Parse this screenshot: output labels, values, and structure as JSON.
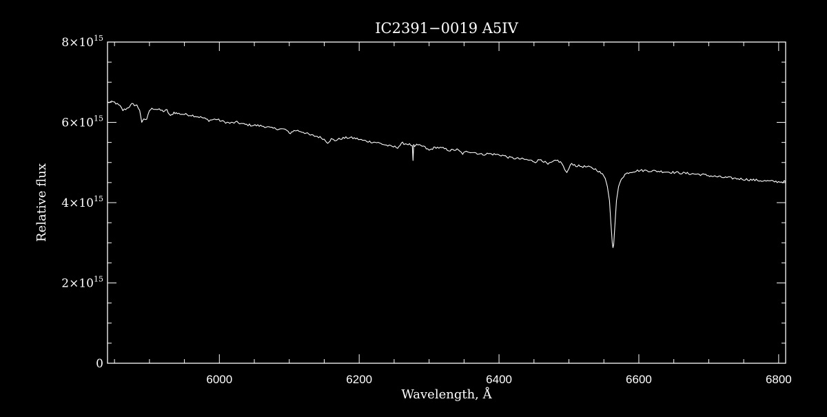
{
  "chart_data": {
    "type": "line",
    "title": "IC2391−0019   A5IV",
    "xlabel": "Wavelength, Å",
    "ylabel": "Relative flux",
    "xlim": [
      5840,
      6810
    ],
    "ylim": [
      0,
      8000000000000000.0
    ],
    "x_ticks": [
      {
        "value": 6000,
        "label": "6000"
      },
      {
        "value": 6200,
        "label": "6200"
      },
      {
        "value": 6400,
        "label": "6400"
      },
      {
        "value": 6600,
        "label": "6600"
      },
      {
        "value": 6800,
        "label": "6800"
      }
    ],
    "y_ticks": [
      {
        "value": 0,
        "mantissa": "0",
        "exponent": ""
      },
      {
        "value": 2000000000000000.0,
        "mantissa": "2×10",
        "exponent": "15"
      },
      {
        "value": 4000000000000000.0,
        "mantissa": "4×10",
        "exponent": "15"
      },
      {
        "value": 6000000000000000.0,
        "mantissa": "6×10",
        "exponent": "15"
      },
      {
        "value": 8000000000000000.0,
        "mantissa": "8×10",
        "exponent": "15"
      }
    ],
    "grid": false,
    "series": [
      {
        "color": "#ffffff",
        "x": [
          5840,
          5850,
          5858,
          5862,
          5868,
          5875,
          5882,
          5886,
          5889,
          5892,
          5896,
          5900,
          5905,
          5912,
          5920,
          5925,
          5930,
          5935,
          5940,
          5950,
          5960,
          5975,
          5985,
          5995,
          6005,
          6015,
          6025,
          6035,
          6045,
          6055,
          6065,
          6075,
          6085,
          6095,
          6100,
          6105,
          6110,
          6120,
          6130,
          6140,
          6148,
          6155,
          6160,
          6165,
          6175,
          6185,
          6195,
          6205,
          6215,
          6225,
          6235,
          6245,
          6255,
          6262,
          6270,
          6276,
          6277,
          6278,
          6279,
          6282,
          6292,
          6300,
          6305,
          6310,
          6320,
          6330,
          6340,
          6348,
          6355,
          6365,
          6375,
          6385,
          6395,
          6405,
          6415,
          6425,
          6435,
          6445,
          6452,
          6460,
          6470,
          6478,
          6484,
          6490,
          6494,
          6497,
          6500,
          6504,
          6510,
          6520,
          6530,
          6540,
          6548,
          6552,
          6555,
          6558,
          6560,
          6562,
          6563,
          6564,
          6566,
          6568,
          6571,
          6575,
          6580,
          6585,
          6592,
          6600,
          6610,
          6620,
          6630,
          6645,
          6660,
          6675,
          6690,
          6705,
          6720,
          6740,
          6760,
          6780,
          6800,
          6810
        ],
        "y": [
          6500000000000000.0,
          6500000000000000.0,
          6400000000000000.0,
          6300000000000000.0,
          6350000000000000.0,
          6450000000000000.0,
          6420000000000000.0,
          6300000000000000.0,
          6000000000000000.0,
          6100000000000000.0,
          6050000000000000.0,
          6300000000000000.0,
          6350000000000000.0,
          6320000000000000.0,
          6280000000000000.0,
          6300000000000000.0,
          6150000000000000.0,
          6250000000000000.0,
          6220000000000000.0,
          6200000000000000.0,
          6180000000000000.0,
          6120000000000000.0,
          6050000000000000.0,
          6080000000000000.0,
          6020000000000000.0,
          5980000000000000.0,
          6000000000000000.0,
          5950000000000000.0,
          5930000000000000.0,
          5920000000000000.0,
          5900000000000000.0,
          5850000000000000.0,
          5840000000000000.0,
          5820000000000000.0,
          5720000000000000.0,
          5780000000000000.0,
          5800000000000000.0,
          5760000000000000.0,
          5680000000000000.0,
          5650000000000000.0,
          5600000000000000.0,
          5500000000000000.0,
          5580000000000000.0,
          5550000000000000.0,
          5600000000000000.0,
          5620000000000000.0,
          5600000000000000.0,
          5550000000000000.0,
          5520000000000000.0,
          5500000000000000.0,
          5450000000000000.0,
          5400000000000000.0,
          5380000000000000.0,
          5480000000000000.0,
          5460000000000000.0,
          5420000000000000.0,
          5050000000000000.0,
          5450000000000000.0,
          5400000000000000.0,
          5430000000000000.0,
          5400000000000000.0,
          5300000000000000.0,
          5350000000000000.0,
          5380000000000000.0,
          5350000000000000.0,
          5300000000000000.0,
          5320000000000000.0,
          5220000000000000.0,
          5280000000000000.0,
          5250000000000000.0,
          5200000000000000.0,
          5220000000000000.0,
          5200000000000000.0,
          5180000000000000.0,
          5120000000000000.0,
          5100000000000000.0,
          5080000000000000.0,
          5050000000000000.0,
          5020000000000000.0,
          5080000000000000.0,
          4950000000000000.0,
          5020000000000000.0,
          5050000000000000.0,
          4980000000000000.0,
          4820000000000000.0,
          4750000000000000.0,
          4850000000000000.0,
          4980000000000000.0,
          4920000000000000.0,
          4900000000000000.0,
          4880000000000000.0,
          4820000000000000.0,
          4700000000000000.0,
          4600000000000000.0,
          4400000000000000.0,
          4050000000000000.0,
          3500000000000000.0,
          3000000000000000.0,
          2880000000000000.0,
          2950000000000000.0,
          3500000000000000.0,
          4050000000000000.0,
          4400000000000000.0,
          4600000000000000.0,
          4700000000000000.0,
          4750000000000000.0,
          4780000000000000.0,
          4800000000000000.0,
          4800000000000000.0,
          4790000000000000.0,
          4780000000000000.0,
          4760000000000000.0,
          4740000000000000.0,
          4720000000000000.0,
          4700000000000000.0,
          4660000000000000.0,
          4630000000000000.0,
          4600000000000000.0,
          4570000000000000.0,
          4540000000000000.0,
          4520000000000000.0,
          4520000000000000.0
        ]
      }
    ]
  }
}
